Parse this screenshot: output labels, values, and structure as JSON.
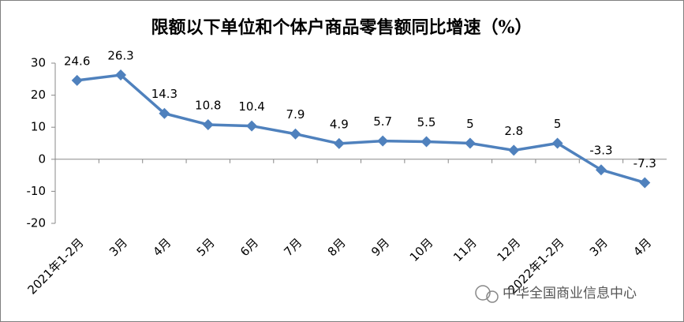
{
  "chart_data": {
    "type": "line",
    "title": "限额以下单位和个体户商品零售额同比增速（%）",
    "categories": [
      "2021年1-2月",
      "3月",
      "4月",
      "5月",
      "6月",
      "7月",
      "8月",
      "9月",
      "10月",
      "11月",
      "12月",
      "2022年1-2月",
      "3月",
      "4月"
    ],
    "series": [
      {
        "name": "限额以下单位和个体户商品零售额同比增速",
        "color": "#4f81bd",
        "values": [
          24.6,
          26.3,
          14.3,
          10.8,
          10.4,
          7.9,
          4.9,
          5.7,
          5.5,
          5,
          2.8,
          5,
          -3.3,
          -7.3
        ]
      }
    ],
    "ylim": [
      -20,
      30
    ],
    "yticks": [
      -20,
      -10,
      0,
      10,
      20,
      30
    ],
    "grid": false,
    "watermark": "中华全国商业信息中心"
  }
}
